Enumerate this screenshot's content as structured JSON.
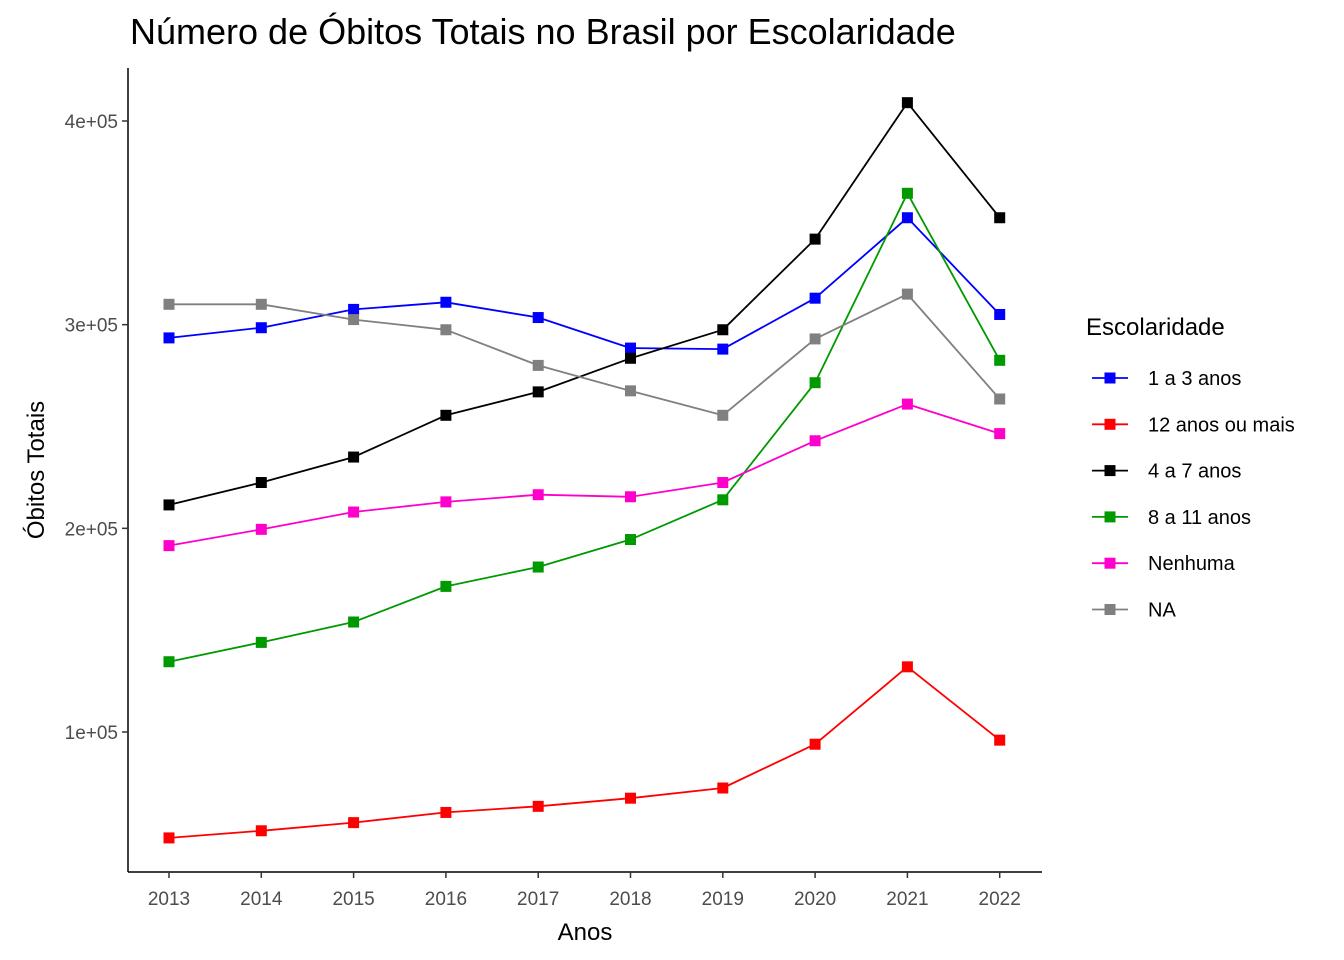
{
  "chart_data": {
    "type": "line",
    "title": "Número de Óbitos Totais no Brasil por Escolaridade",
    "xlabel": "Anos",
    "ylabel": "Óbitos Totais",
    "x": [
      2013,
      2014,
      2015,
      2016,
      2017,
      2018,
      2019,
      2020,
      2021,
      2022
    ],
    "x_tick_labels": [
      "2013",
      "2014",
      "2015",
      "2016",
      "2017",
      "2018",
      "2019",
      "2020",
      "2021",
      "2022"
    ],
    "y_ticks": [
      100000,
      200000,
      300000,
      400000
    ],
    "y_tick_labels": [
      "1e+05",
      "2e+05",
      "3e+05",
      "4e+05"
    ],
    "ylim": [
      45000,
      425000
    ],
    "grid": false,
    "legend": {
      "title": "Escolaridade",
      "position": "right"
    },
    "series": [
      {
        "name": "1 a 3 anos",
        "color": "#0000ff",
        "values": [
          293500,
          298500,
          307500,
          311000,
          303500,
          288500,
          288000,
          313000,
          352500,
          305000
        ]
      },
      {
        "name": "12 anos ou mais",
        "color": "#ff0000",
        "values": [
          48000,
          51500,
          55500,
          60500,
          63500,
          67500,
          72500,
          94000,
          132000,
          96000
        ]
      },
      {
        "name": "4 a 7 anos",
        "color": "#000000",
        "values": [
          211500,
          222500,
          235000,
          255500,
          267000,
          283500,
          297500,
          342000,
          409000,
          352500
        ]
      },
      {
        "name": "8 a 11 anos",
        "color": "#009900",
        "values": [
          134500,
          144000,
          154000,
          171500,
          181000,
          194500,
          214000,
          271500,
          364500,
          282500
        ]
      },
      {
        "name": "Nenhuma",
        "color": "#ff00cc",
        "values": [
          191500,
          199500,
          208000,
          213000,
          216500,
          215500,
          222500,
          243000,
          261000,
          246500
        ]
      },
      {
        "name": "NA",
        "color": "#808080",
        "values": [
          310000,
          310000,
          302500,
          297500,
          280000,
          267500,
          255500,
          293000,
          315000,
          263500
        ]
      }
    ]
  }
}
